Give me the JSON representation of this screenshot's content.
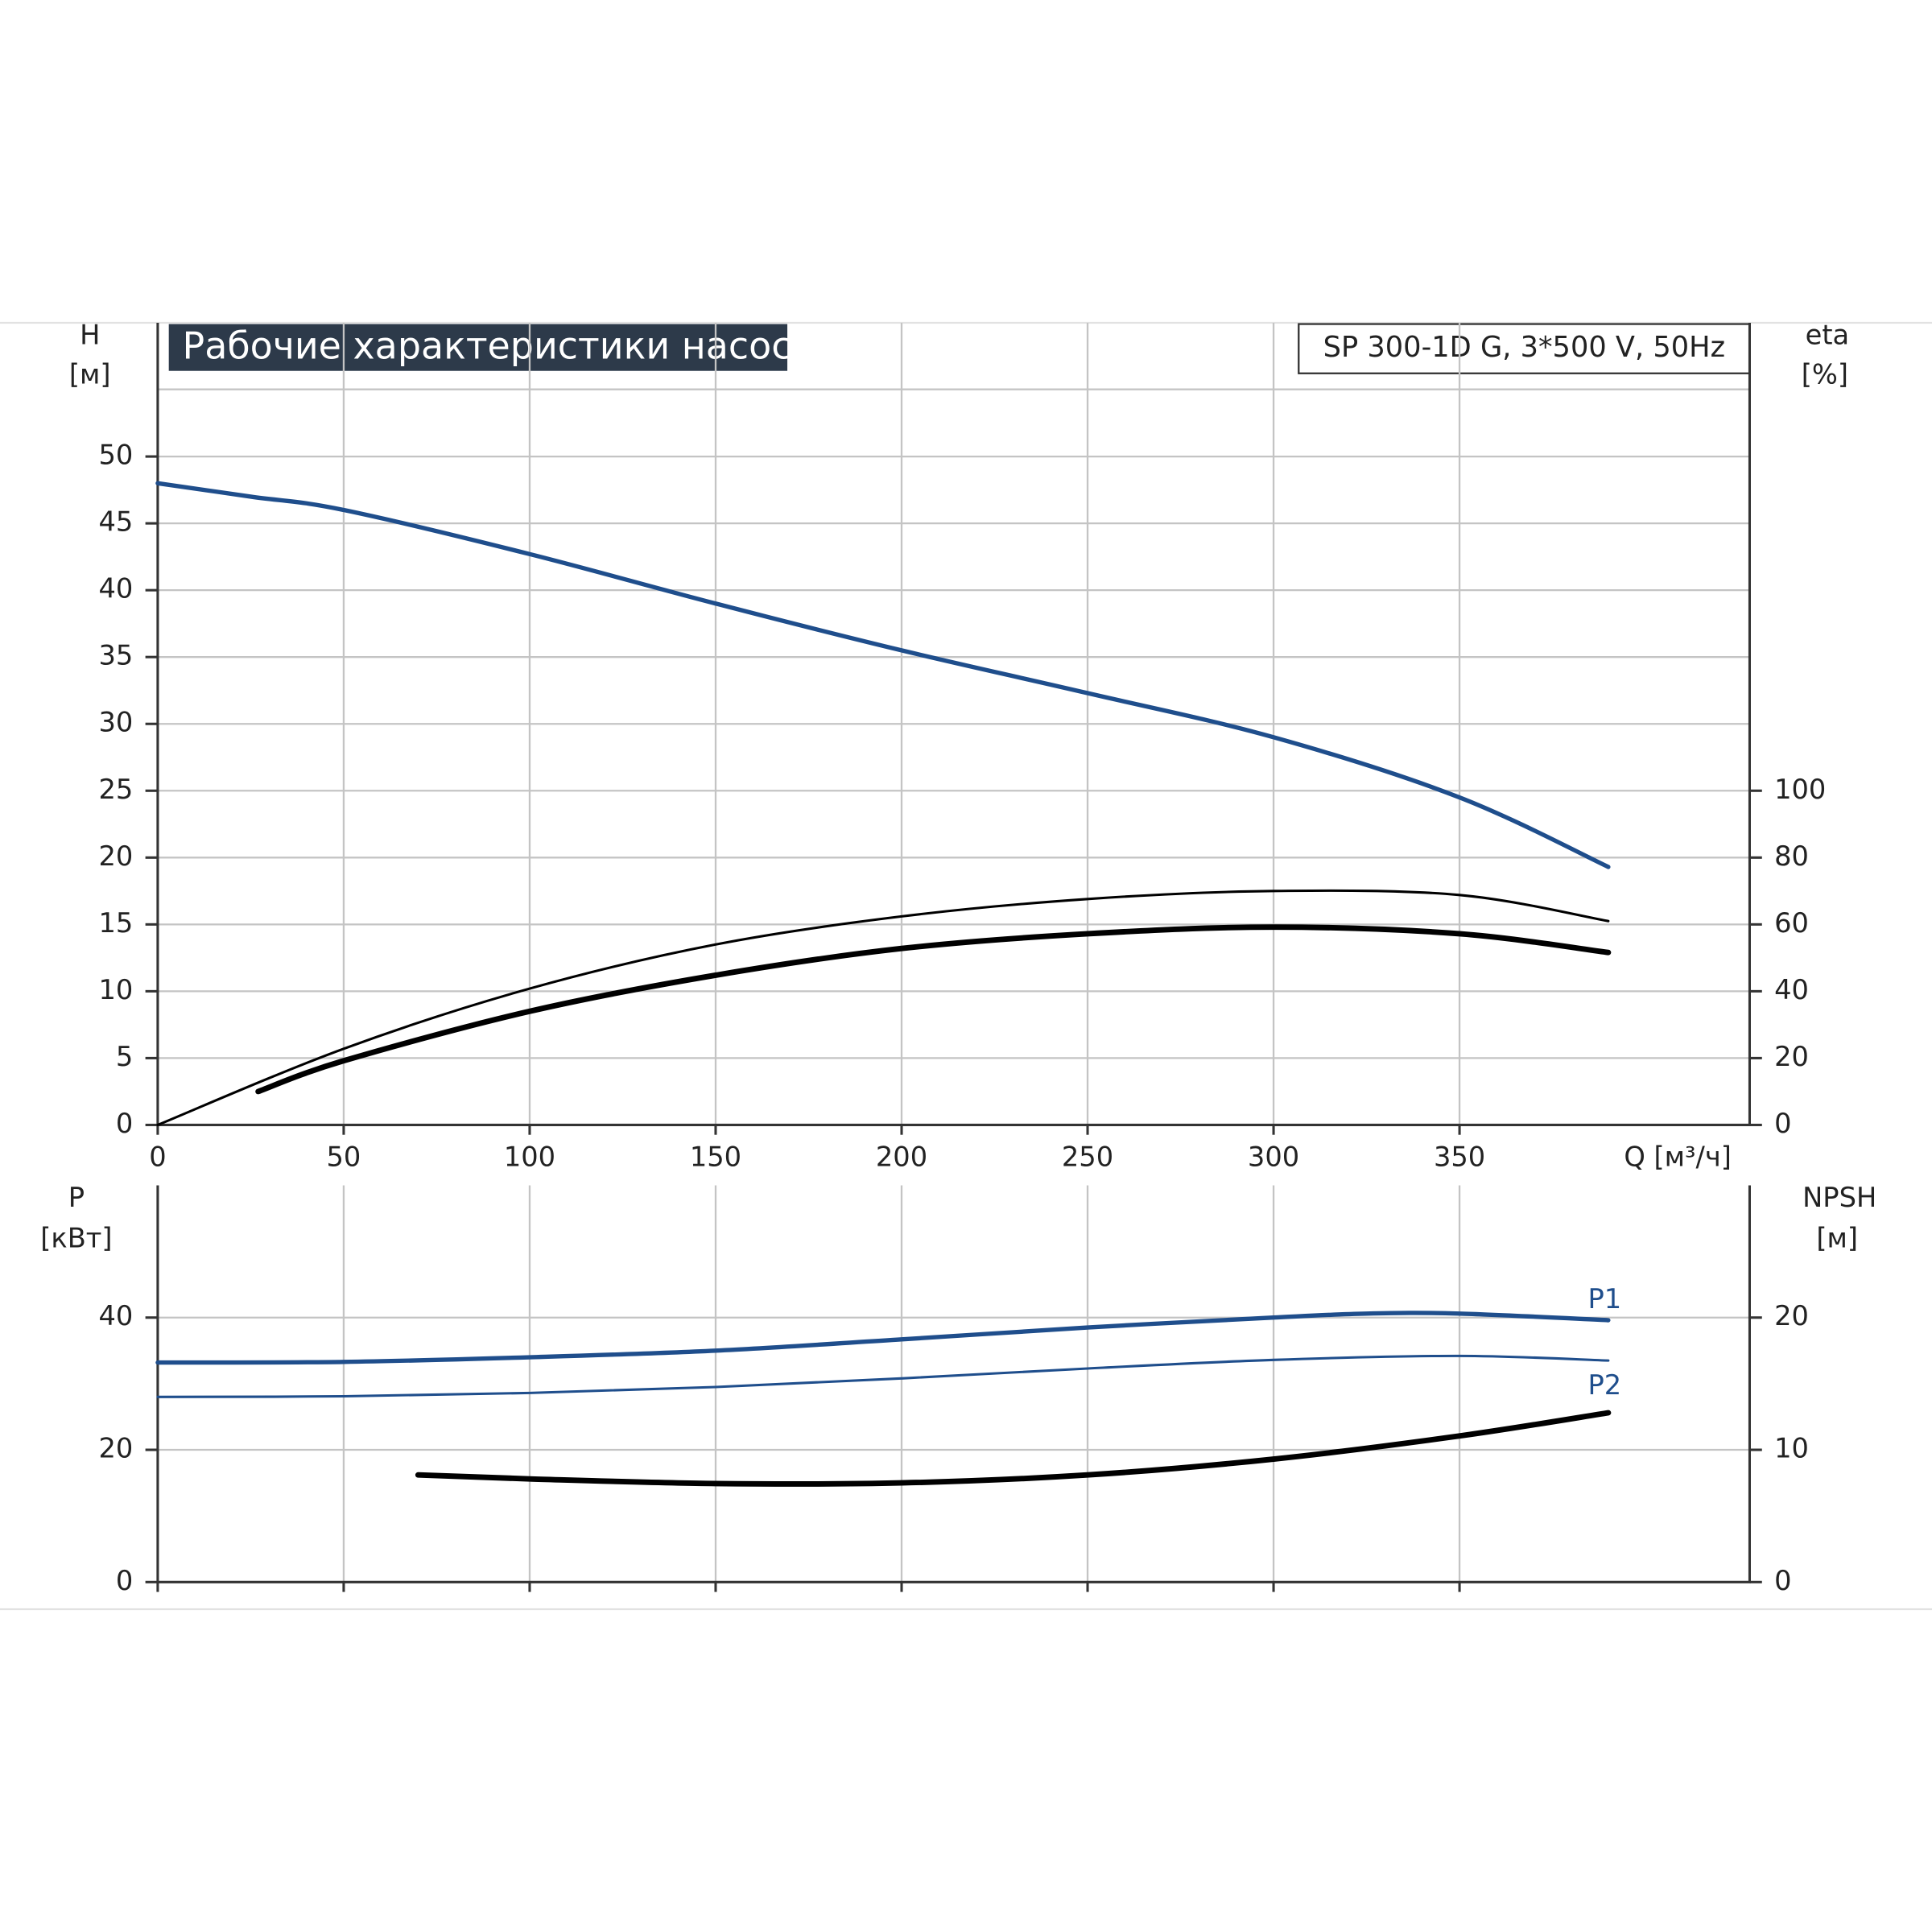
{
  "chart_data": [
    {
      "type": "line",
      "title": "Рабочие характеристики насоса",
      "subtitle": "SP 300-1D G, 3*500 V, 50Hz",
      "ylabel": "H",
      "yunit": "[м]",
      "y2label": "eta",
      "y2unit": "[%]",
      "xlabel": "Q [м³/ч]",
      "xlim": [
        0,
        428
      ],
      "xticks": [
        0,
        50,
        100,
        150,
        200,
        250,
        300,
        350
      ],
      "ylim": [
        0,
        60
      ],
      "yticks": [
        0,
        5,
        10,
        15,
        20,
        25,
        30,
        35,
        40,
        45,
        50
      ],
      "y2lim": [
        0,
        240
      ],
      "y2ticks": [
        0,
        20,
        40,
        60,
        80,
        100
      ],
      "grid": true,
      "series": [
        {
          "color": "#1f4e8c",
          "linewidth": 3.5,
          "x": [
            0,
            25,
            50,
            100,
            150,
            200,
            250,
            300,
            350,
            390
          ],
          "values": [
            48,
            47,
            46,
            42.7,
            39,
            35.5,
            32.3,
            29,
            24.5,
            19.3
          ]
        },
        {
          "color": "#000000",
          "linewidth": 2,
          "axis": "y2",
          "x": [
            0,
            50,
            100,
            150,
            200,
            250,
            300,
            350,
            390
          ],
          "values": [
            0,
            22.8,
            40.8,
            54,
            62.4,
            67.6,
            70,
            68.8,
            61
          ]
        },
        {
          "color": "#000000",
          "linewidth": 4.5,
          "axis": "y2",
          "x": [
            27,
            50,
            100,
            150,
            200,
            250,
            300,
            350,
            390
          ],
          "values": [
            10,
            19.2,
            34,
            44.8,
            52.8,
            57.2,
            59.2,
            57.2,
            51.6
          ]
        }
      ]
    },
    {
      "type": "line",
      "ylabel": "P",
      "yunit": "[кВт]",
      "y2label": "NPSH",
      "y2unit": "[м]",
      "xlim": [
        0,
        428
      ],
      "ylim": [
        0,
        60
      ],
      "yticks": [
        0,
        20,
        40
      ],
      "y2lim": [
        0,
        30
      ],
      "y2ticks": [
        0,
        10,
        20
      ],
      "grid": true,
      "series": [
        {
          "name": "P1",
          "color": "#1f4e8c",
          "linewidth": 3.5,
          "x": [
            0,
            50,
            100,
            150,
            200,
            250,
            300,
            325,
            350,
            390
          ],
          "values": [
            33.2,
            33.3,
            34,
            35,
            36.7,
            38.5,
            40,
            40.6,
            40.6,
            39.6
          ]
        },
        {
          "name": "P2",
          "color": "#1f4e8c",
          "linewidth": 2,
          "x": [
            0,
            50,
            100,
            150,
            200,
            250,
            300,
            350,
            390
          ],
          "values": [
            28,
            28.1,
            28.6,
            29.5,
            30.8,
            32.3,
            33.6,
            34.2,
            33.5
          ]
        },
        {
          "color": "#000000",
          "linewidth": 4.5,
          "axis": "y2",
          "x": [
            70,
            100,
            150,
            200,
            250,
            300,
            350,
            390
          ],
          "values": [
            8.1,
            7.8,
            7.45,
            7.5,
            8.1,
            9.3,
            11.05,
            12.8
          ]
        }
      ]
    }
  ]
}
